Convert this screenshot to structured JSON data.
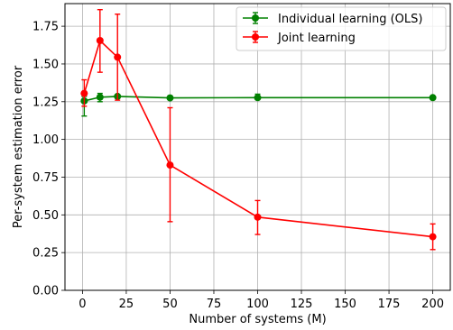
{
  "chart_data": {
    "type": "line",
    "title": "",
    "xlabel": "Number of systems (M)",
    "ylabel": "Per-system estimation error",
    "xlim": [
      -10,
      210
    ],
    "ylim": [
      0,
      1.9
    ],
    "xticks": [
      0,
      25,
      50,
      75,
      100,
      125,
      150,
      175,
      200
    ],
    "xtick_labels": [
      "0",
      "25",
      "50",
      "75",
      "100",
      "125",
      "150",
      "175",
      "200"
    ],
    "yticks": [
      0,
      0.25,
      0.5,
      0.75,
      1.0,
      1.25,
      1.5,
      1.75
    ],
    "ytick_labels": [
      "0.00",
      "0.25",
      "0.50",
      "0.75",
      "1.00",
      "1.25",
      "1.50",
      "1.75"
    ],
    "grid": true,
    "legend_position": "top-right",
    "series": [
      {
        "name": "Individual learning (OLS)",
        "color": "#008000",
        "x": [
          1,
          10,
          20,
          50,
          100,
          200
        ],
        "y": [
          1.255,
          1.28,
          1.285,
          1.275,
          1.277,
          1.277
        ],
        "err_low": [
          1.155,
          1.25,
          1.275,
          1.27,
          1.27,
          1.27
        ],
        "err_high": [
          1.285,
          1.305,
          1.295,
          1.28,
          1.3,
          1.285
        ]
      },
      {
        "name": "Joint learning",
        "color": "#ff0000",
        "x": [
          1,
          10,
          20,
          50,
          100,
          200
        ],
        "y": [
          1.305,
          1.655,
          1.545,
          0.83,
          0.485,
          0.355
        ],
        "err_low": [
          1.22,
          1.445,
          1.26,
          0.455,
          0.37,
          0.27
        ],
        "err_high": [
          1.395,
          1.86,
          1.83,
          1.21,
          0.595,
          0.44
        ]
      }
    ]
  }
}
